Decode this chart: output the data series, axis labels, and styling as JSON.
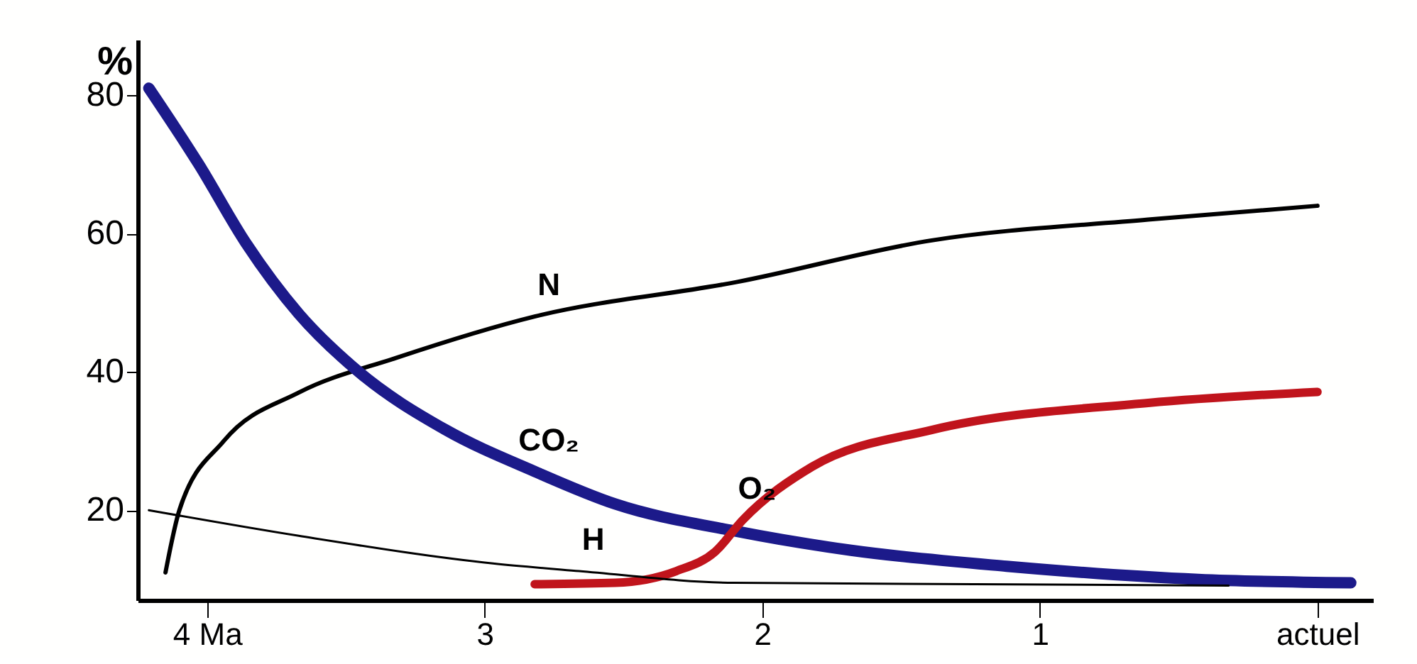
{
  "chart_data": {
    "type": "line",
    "ylabel": "%",
    "xlim": [
      4.25,
      -0.2
    ],
    "ylim": [
      7,
      88
    ],
    "xticks": [
      {
        "value": 4,
        "label": "4 Ma"
      },
      3,
      2,
      1,
      {
        "value": 0,
        "label": "actuel"
      }
    ],
    "yticks": [
      20,
      40,
      60,
      80
    ],
    "grid": false,
    "marker": "none",
    "line_style": "solid",
    "series": [
      {
        "name": "N",
        "color": "#000000",
        "x": [
          4.15,
          4.1,
          3.94,
          3.67,
          3.32,
          2.82,
          2.09,
          1.39,
          0.61,
          0
        ],
        "values": [
          11,
          20,
          30,
          37,
          42,
          48,
          53,
          59,
          62,
          64
        ]
      },
      {
        "name": "CO₂",
        "color": "#1c1a8a",
        "x": [
          4.21,
          4.03,
          3.86,
          3.67,
          3.46,
          3.14,
          2.82,
          2.53,
          2.1,
          1.68,
          1.12,
          0.43,
          -0.12
        ],
        "values": [
          81,
          70,
          58.6,
          48.4,
          40.2,
          31.6,
          25.6,
          20.9,
          17,
          14.2,
          11.9,
          10,
          9.5
        ]
      },
      {
        "name": "O₂",
        "color": "#c0141c",
        "x": [
          2.82,
          2.53,
          2.31,
          2.17,
          2.07,
          1.82,
          1.39,
          0.61,
          0
        ],
        "values": [
          9.3,
          9.5,
          11.2,
          14,
          18.6,
          26.3,
          31.6,
          35.5,
          37.1
        ]
      },
      {
        "name": "H",
        "color": "#000000",
        "x": [
          4.21,
          3.67,
          2.97,
          2.66,
          2.1,
          0.32
        ],
        "values": [
          20,
          16.3,
          12.3,
          11.2,
          9.5,
          9.1
        ]
      }
    ]
  }
}
